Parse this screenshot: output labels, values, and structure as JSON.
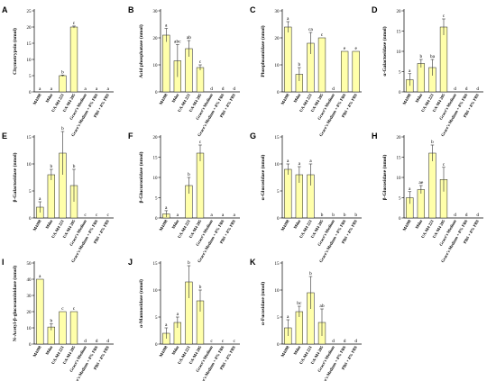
{
  "figure": {
    "categories": [
      "M4398",
      "Mdm",
      "UA-M4 221",
      "UA-M4 205",
      "Grace's Medium",
      "Grace's Medium + 8% FBS",
      "PBS + 8% FBS"
    ],
    "bar_color": "#ffffaa"
  },
  "chart_data": [
    {
      "panel": "A",
      "type": "bar",
      "ylabel": "Chymotrypsin (nmol)",
      "ylim": [
        0,
        25
      ],
      "yticks": [
        0,
        5,
        10,
        15,
        20,
        25
      ],
      "values": [
        0,
        0,
        5,
        20,
        0,
        0,
        0
      ],
      "errors": [
        0,
        0,
        0.2,
        0.3,
        0,
        0,
        0
      ],
      "letters": [
        "a",
        "a",
        "b",
        "c",
        "a",
        "a",
        "a"
      ]
    },
    {
      "panel": "B",
      "type": "bar",
      "ylabel": "Acid phosphatase (nmol)",
      "ylim": [
        0,
        30
      ],
      "yticks": [
        0,
        10,
        20,
        30
      ],
      "values": [
        21,
        11.5,
        16,
        9,
        0,
        0,
        0
      ],
      "errors": [
        2.5,
        6,
        3,
        1,
        0,
        0,
        0
      ],
      "letters": [
        "a",
        "abc",
        "ab",
        "c",
        "d",
        "d",
        "d"
      ]
    },
    {
      "panel": "C",
      "type": "bar",
      "ylabel": "Phosphoamidase (nmol)",
      "ylim": [
        0,
        30
      ],
      "yticks": [
        0,
        10,
        20,
        30
      ],
      "values": [
        24,
        6.5,
        18,
        20,
        0,
        15,
        15
      ],
      "errors": [
        2,
        2.5,
        4,
        0,
        0,
        0,
        0
      ],
      "letters": [
        "a",
        "b",
        "ca",
        "c",
        "d",
        "e",
        "e"
      ]
    },
    {
      "panel": "D",
      "type": "bar",
      "ylabel": "α-Galactosidase (nmol)",
      "ylim": [
        0,
        20
      ],
      "yticks": [
        0,
        5,
        10,
        15,
        20
      ],
      "values": [
        3,
        7,
        6,
        16,
        0,
        0,
        0
      ],
      "errors": [
        1.5,
        1,
        2,
        2,
        0,
        0,
        0
      ],
      "letters": [
        "a",
        "b",
        "ba",
        "c",
        "d",
        "d",
        "d"
      ]
    },
    {
      "panel": "E",
      "type": "bar",
      "ylabel": "β-Galactosidase (nmol)",
      "ylim": [
        0,
        15
      ],
      "yticks": [
        0,
        5,
        10,
        15
      ],
      "values": [
        2,
        8,
        12,
        6,
        0,
        0,
        0
      ],
      "errors": [
        1,
        1,
        4,
        3,
        0,
        0,
        0
      ],
      "letters": [
        "a",
        "b",
        "b",
        "b",
        "c",
        "c",
        "c"
      ]
    },
    {
      "panel": "F",
      "type": "bar",
      "ylabel": "β-Glucuronidase (nmol)",
      "ylim": [
        0,
        20
      ],
      "yticks": [
        0,
        5,
        10,
        15,
        20
      ],
      "values": [
        1,
        0,
        8,
        16,
        0,
        0,
        0
      ],
      "errors": [
        0.8,
        0,
        2,
        2,
        0,
        0,
        0
      ],
      "letters": [
        "a",
        "a",
        "b",
        "c",
        "a",
        "a",
        "a"
      ]
    },
    {
      "panel": "G",
      "type": "bar",
      "ylabel": "α-Glucosidase (nmol)",
      "ylim": [
        0,
        15
      ],
      "yticks": [
        0,
        5,
        10,
        15
      ],
      "values": [
        9,
        8,
        8,
        0,
        0,
        0,
        0
      ],
      "errors": [
        1,
        1.5,
        2,
        0,
        0,
        0,
        0
      ],
      "letters": [
        "a",
        "a",
        "a",
        "b",
        "b",
        "b",
        "b"
      ]
    },
    {
      "panel": "H",
      "type": "bar",
      "ylabel": "β-Glucosidase (nmol)",
      "ylim": [
        0,
        20
      ],
      "yticks": [
        0,
        5,
        10,
        15,
        20
      ],
      "values": [
        5,
        7,
        16,
        9.5,
        0,
        0,
        0
      ],
      "errors": [
        1.5,
        1,
        2,
        3,
        0,
        0,
        0
      ],
      "letters": [
        "a",
        "ae",
        "b",
        "c",
        "d",
        "d",
        "d"
      ]
    },
    {
      "panel": "I",
      "type": "bar",
      "ylabel": "N-Acetyl-β-glucosaminidase (nmol)",
      "ylim": [
        0,
        50
      ],
      "yticks": [
        0,
        10,
        20,
        30,
        40,
        50
      ],
      "values": [
        40,
        10.5,
        20,
        20,
        0,
        0,
        0
      ],
      "errors": [
        0,
        2,
        0,
        0,
        0,
        0,
        0
      ],
      "letters": [
        "a",
        "b",
        "c",
        "c",
        "d",
        "d",
        "d"
      ]
    },
    {
      "panel": "J",
      "type": "bar",
      "ylabel": "α-Mannosidase (nmol)",
      "ylim": [
        0,
        15
      ],
      "yticks": [
        0,
        5,
        10,
        15
      ],
      "values": [
        2,
        4,
        11.5,
        8,
        0,
        0,
        0
      ],
      "errors": [
        1,
        1,
        3,
        2,
        0,
        0,
        0
      ],
      "letters": [
        "a",
        "a",
        "b",
        "b",
        "c",
        "c",
        "c"
      ]
    },
    {
      "panel": "K",
      "type": "bar",
      "ylabel": "α-Fucosidase (nmol)",
      "ylim": [
        0,
        15
      ],
      "yticks": [
        0,
        5,
        10,
        15
      ],
      "values": [
        3,
        6,
        9.5,
        4,
        0,
        0,
        0
      ],
      "errors": [
        1.5,
        1,
        3,
        2.5,
        0,
        0,
        0
      ],
      "letters": [
        "a",
        "bc",
        "b",
        "ab",
        "d",
        "d",
        "d"
      ]
    }
  ]
}
